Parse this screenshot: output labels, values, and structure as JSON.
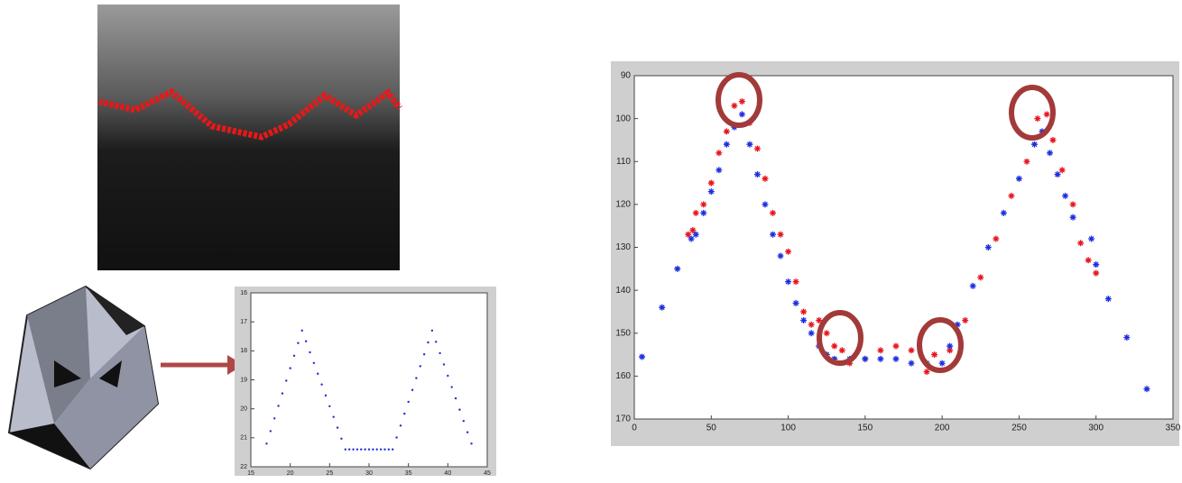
{
  "chart_data": [
    {
      "type": "scatter",
      "marker": "dot",
      "y_reversed": true,
      "xlim": [
        15,
        45
      ],
      "xticks": [
        15,
        20,
        25,
        30,
        35,
        40,
        45
      ],
      "ylim": [
        16,
        22
      ],
      "yticks": [
        16,
        17,
        18,
        19,
        20,
        21,
        22
      ],
      "series": [
        {
          "color": "#1f2fd0",
          "x": [
            17,
            17.5,
            18,
            18.5,
            19,
            19.5,
            20,
            20.5,
            21,
            21.5,
            22,
            22.5,
            23,
            23.5,
            24,
            24.5,
            25,
            25.5,
            26,
            26.5,
            27,
            27.5,
            28,
            28.5,
            29,
            29.5,
            30,
            30.5,
            31,
            31.5,
            32,
            32.5,
            33,
            33.5,
            34,
            34.5,
            35,
            35.5,
            36,
            36.5,
            37,
            37.5,
            38,
            38.5,
            39,
            39.5,
            40,
            40.5,
            41,
            41.5,
            42,
            42.5,
            43
          ],
          "values": [
            21.2,
            20.77,
            20.33,
            19.9,
            19.47,
            19.03,
            18.6,
            18.17,
            17.73,
            17.3,
            17.67,
            18.05,
            18.42,
            18.79,
            19.16,
            19.54,
            19.91,
            20.28,
            20.65,
            21.03,
            21.4,
            21.4,
            21.4,
            21.4,
            21.4,
            21.4,
            21.4,
            21.4,
            21.4,
            21.4,
            21.4,
            21.4,
            21.4,
            20.99,
            20.58,
            20.17,
            19.76,
            19.35,
            18.94,
            18.53,
            18.12,
            17.71,
            17.3,
            17.69,
            18.08,
            18.47,
            18.86,
            19.25,
            19.64,
            20.03,
            20.42,
            20.81,
            21.2
          ]
        }
      ]
    },
    {
      "type": "scatter",
      "marker": "star",
      "y_reversed": true,
      "xlim": [
        0,
        350
      ],
      "xticks": [
        0,
        50,
        100,
        150,
        200,
        250,
        300,
        350
      ],
      "ylim": [
        90,
        170
      ],
      "yticks": [
        90,
        100,
        110,
        120,
        130,
        140,
        150,
        160,
        170
      ],
      "series": [
        {
          "color": "#e8141e",
          "x": [
            35,
            38,
            40,
            45,
            50,
            55,
            60,
            65,
            70,
            75,
            80,
            85,
            90,
            95,
            100,
            105,
            110,
            115,
            120,
            125,
            130,
            135,
            140,
            150,
            160,
            170,
            180,
            190,
            195,
            205,
            215,
            225,
            235,
            245,
            255,
            262,
            268,
            272,
            278,
            285,
            290,
            295,
            300
          ],
          "values": [
            127,
            126,
            122,
            120,
            115,
            108,
            103,
            97,
            96,
            101,
            107,
            114,
            122,
            127,
            131,
            138,
            145,
            148,
            147,
            150,
            153,
            154,
            157,
            156,
            154,
            153,
            154,
            159,
            155,
            154,
            147,
            137,
            128,
            118,
            110,
            100,
            99,
            105,
            112,
            120,
            129,
            133,
            136
          ]
        },
        {
          "color": "#1c2ee0",
          "x": [
            5,
            18,
            28,
            37,
            40,
            45,
            50,
            55,
            60,
            65,
            70,
            75,
            80,
            85,
            90,
            95,
            100,
            105,
            110,
            115,
            120,
            125,
            130,
            140,
            150,
            160,
            170,
            180,
            190,
            200,
            205,
            210,
            220,
            230,
            240,
            250,
            260,
            265,
            270,
            275,
            280,
            285,
            297,
            300,
            308,
            320,
            333
          ],
          "values": [
            155.5,
            144,
            135,
            128,
            127,
            122,
            117,
            112,
            106,
            102,
            99,
            106,
            113,
            120,
            127,
            132,
            138,
            143,
            147,
            150,
            153,
            155,
            156,
            156,
            156,
            156,
            156,
            157,
            157,
            157,
            153,
            148,
            139,
            130,
            122,
            114,
            106,
            103,
            108,
            113,
            118,
            123,
            128,
            134,
            142,
            151,
            163
          ]
        }
      ]
    }
  ]
}
